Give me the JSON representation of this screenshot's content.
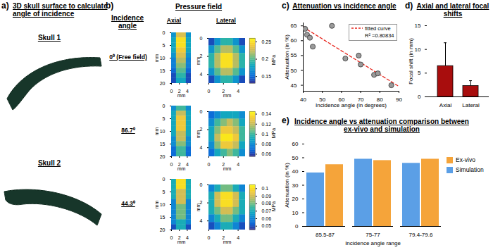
{
  "chart_data": [
    {
      "type": "image",
      "panel": "a)",
      "title": "3D skull surface to calculate angle of incidence",
      "labels": [
        "Skull 1",
        "Skull 2"
      ]
    },
    {
      "type": "heatmap",
      "panel": "b)",
      "title": "Pressure field",
      "row_title": "Incidence angle",
      "column_titles": [
        "Axial",
        "Lateral"
      ],
      "xlabel": "mm",
      "ylabel": "mm",
      "colorbar_label": "MPa",
      "rows": [
        {
          "label": "0⁰ (Free field)",
          "colorbar_range": [
            0.13,
            0.26
          ],
          "colorbar_ticks": [
            0.15,
            0.2,
            0.25
          ],
          "axial": {
            "xlim": [
              0,
              5
            ],
            "ylim": [
              0,
              20
            ],
            "xticks": [
              0,
              2,
              4
            ],
            "yticks": [
              0,
              5,
              10,
              15,
              20
            ],
            "cells": [
              [
                0.17,
                0.23,
                0.23,
                0.17
              ],
              [
                0.18,
                0.25,
                0.25,
                0.18
              ],
              [
                0.18,
                0.25,
                0.25,
                0.18
              ],
              [
                0.18,
                0.24,
                0.24,
                0.18
              ],
              [
                0.17,
                0.23,
                0.23,
                0.17
              ],
              [
                0.16,
                0.22,
                0.22,
                0.16
              ],
              [
                0.16,
                0.21,
                0.21,
                0.16
              ],
              [
                0.15,
                0.2,
                0.2,
                0.15
              ],
              [
                0.14,
                0.19,
                0.19,
                0.14
              ],
              [
                0.14,
                0.18,
                0.18,
                0.14
              ]
            ]
          },
          "lateral": {
            "xlim": [
              0,
              5
            ],
            "ylim": [
              0,
              5
            ],
            "xticks": [
              0,
              2,
              4
            ],
            "yticks": [
              0,
              2,
              4
            ],
            "cells": [
              [
                0.14,
                0.17,
                0.19,
                0.19,
                0.17,
                0.14
              ],
              [
                0.17,
                0.2,
                0.22,
                0.22,
                0.2,
                0.17
              ],
              [
                0.19,
                0.22,
                0.25,
                0.25,
                0.22,
                0.19
              ],
              [
                0.19,
                0.22,
                0.25,
                0.25,
                0.22,
                0.19
              ],
              [
                0.17,
                0.2,
                0.22,
                0.22,
                0.2,
                0.17
              ],
              [
                0.14,
                0.17,
                0.19,
                0.19,
                0.17,
                0.14
              ]
            ]
          }
        },
        {
          "label": "86.7⁰",
          "colorbar_range": [
            0.055,
            0.145
          ],
          "colorbar_ticks": [
            0.06,
            0.08,
            0.1,
            0.12,
            0.14
          ],
          "axial": {
            "xlim": [
              0,
              5
            ],
            "ylim": [
              0,
              20
            ],
            "xticks": [
              0,
              2,
              4
            ],
            "yticks": [
              0,
              5,
              10,
              15,
              20
            ],
            "cells": [
              [
                0.08,
                0.1,
                0.1,
                0.08
              ],
              [
                0.09,
                0.12,
                0.12,
                0.09
              ],
              [
                0.09,
                0.13,
                0.13,
                0.09
              ],
              [
                0.09,
                0.13,
                0.13,
                0.09
              ],
              [
                0.09,
                0.13,
                0.13,
                0.09
              ],
              [
                0.09,
                0.12,
                0.12,
                0.09
              ],
              [
                0.08,
                0.12,
                0.12,
                0.08
              ],
              [
                0.08,
                0.11,
                0.11,
                0.08
              ],
              [
                0.07,
                0.1,
                0.1,
                0.07
              ],
              [
                0.07,
                0.1,
                0.1,
                0.07
              ]
            ]
          },
          "lateral": {
            "xlim": [
              0,
              5
            ],
            "ylim": [
              0,
              5
            ],
            "xticks": [
              0,
              2,
              4
            ],
            "yticks": [
              0,
              2,
              4
            ],
            "cells": [
              [
                0.07,
                0.08,
                0.09,
                0.09,
                0.09,
                0.08
              ],
              [
                0.08,
                0.1,
                0.11,
                0.12,
                0.11,
                0.09
              ],
              [
                0.09,
                0.11,
                0.13,
                0.13,
                0.12,
                0.1
              ],
              [
                0.09,
                0.12,
                0.14,
                0.14,
                0.13,
                0.1
              ],
              [
                0.08,
                0.11,
                0.13,
                0.13,
                0.12,
                0.09
              ],
              [
                0.07,
                0.09,
                0.1,
                0.11,
                0.1,
                0.08
              ]
            ]
          }
        },
        {
          "label": "44.3⁰",
          "colorbar_range": [
            0.045,
            0.105
          ],
          "colorbar_ticks": [
            0.05,
            0.06,
            0.07,
            0.08,
            0.09,
            0.1
          ],
          "axial": {
            "xlim": [
              0,
              5
            ],
            "ylim": [
              0,
              20
            ],
            "xticks": [
              0,
              2,
              4
            ],
            "yticks": [
              0,
              5,
              10,
              15,
              20
            ],
            "cells": [
              [
                0.07,
                0.1,
                0.1,
                0.07
              ],
              [
                0.07,
                0.1,
                0.1,
                0.07
              ],
              [
                0.07,
                0.09,
                0.09,
                0.07
              ],
              [
                0.07,
                0.09,
                0.09,
                0.07
              ],
              [
                0.06,
                0.09,
                0.09,
                0.06
              ],
              [
                0.06,
                0.08,
                0.08,
                0.06
              ],
              [
                0.06,
                0.08,
                0.08,
                0.06
              ],
              [
                0.06,
                0.08,
                0.08,
                0.06
              ],
              [
                0.06,
                0.07,
                0.07,
                0.06
              ],
              [
                0.05,
                0.07,
                0.07,
                0.05
              ]
            ]
          },
          "lateral": {
            "xlim": [
              0,
              5
            ],
            "ylim": [
              0,
              5
            ],
            "xticks": [
              0,
              2,
              4
            ],
            "yticks": [
              0,
              2,
              4
            ],
            "cells": [
              [
                0.06,
                0.07,
                0.08,
                0.08,
                0.07,
                0.06
              ],
              [
                0.07,
                0.09,
                0.1,
                0.1,
                0.09,
                0.07
              ],
              [
                0.07,
                0.09,
                0.1,
                0.1,
                0.09,
                0.07
              ],
              [
                0.07,
                0.08,
                0.09,
                0.09,
                0.08,
                0.07
              ],
              [
                0.06,
                0.07,
                0.08,
                0.08,
                0.07,
                0.06
              ],
              [
                0.05,
                0.06,
                0.07,
                0.07,
                0.06,
                0.05
              ]
            ]
          }
        }
      ]
    },
    {
      "type": "scatter",
      "panel": "c)",
      "title": "Attenuation vs incidence angle",
      "xlabel": "Incidence angle (in degrees)",
      "ylabel": "Attenuation (in %)",
      "xlim": [
        40,
        90
      ],
      "ylim": [
        43,
        66
      ],
      "xticks": [
        40,
        50,
        60,
        70,
        80,
        90
      ],
      "yticks": [
        45,
        50,
        55,
        60,
        65
      ],
      "x": [
        41,
        42,
        43.5,
        45,
        55,
        62,
        69,
        70,
        77,
        79,
        86
      ],
      "values": [
        64,
        62,
        61,
        58,
        65,
        54,
        55,
        52,
        48.5,
        49,
        45
      ],
      "color": "#9a9a9a",
      "marker": "circle",
      "series": [
        {
          "name": "fitted curve",
          "type": "line",
          "line_style": "dashed",
          "color": "#e8251c",
          "x": [
            40,
            90
          ],
          "values": [
            64.6,
            44.6
          ]
        }
      ],
      "annotations": [
        "R² =0.80834"
      ],
      "legend": "top-right"
    },
    {
      "type": "bar",
      "panel": "d)",
      "title": "Axial and lateral focal shifts",
      "ylabel": "Focal shift (in mm)",
      "categories": [
        "Axial",
        "Lateral"
      ],
      "values": [
        6.5,
        2.3
      ],
      "errors": [
        4.9,
        1.1
      ],
      "color": "#a80d0d",
      "ylim": [
        0,
        15
      ],
      "yticks": [
        0,
        5,
        10,
        15
      ]
    },
    {
      "type": "bar",
      "panel": "e)",
      "title": "Incidence angle vs attenuation comparison between ex-vivo and simulation",
      "xlabel": "Incidence angle range",
      "ylabel": "Attenuation (in %)",
      "categories": [
        "85.5-87",
        "75-77",
        "79.4-79.6"
      ],
      "series": [
        {
          "name": "Ex-vivo",
          "color": "#f5a43a",
          "values": [
            45,
            48,
            49
          ]
        },
        {
          "name": "Simulation",
          "color": "#5b9fe6",
          "values": [
            39,
            49,
            46
          ]
        }
      ],
      "ylim": [
        0,
        60
      ],
      "yticks": [
        0,
        10,
        20,
        30,
        40,
        50,
        60
      ],
      "legend": "top-right"
    }
  ]
}
